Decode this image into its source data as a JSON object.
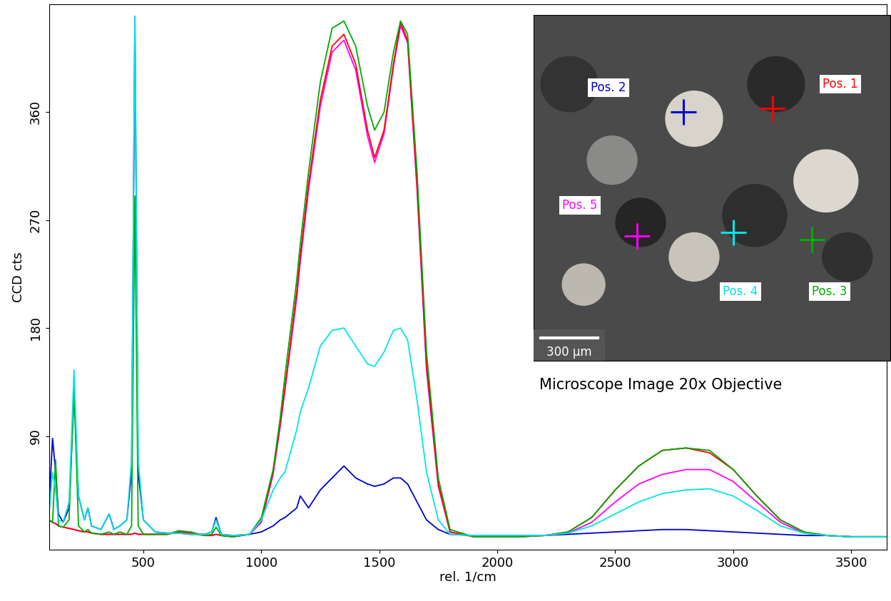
{
  "chart_data": {
    "type": "line",
    "x_label": "rel. 1/cm",
    "y_label": "CCD cts",
    "annotations": [
      "Microscope Image 20x Objective",
      "300 µm"
    ],
    "xlim": [
      100,
      3650
    ],
    "ylim": [
      -5,
      450
    ],
    "xticks": [
      500,
      1000,
      1500,
      2000,
      2500,
      3000,
      3500
    ],
    "yticks": [
      90,
      180,
      270,
      360
    ],
    "grid": false,
    "x": [
      100,
      115,
      128,
      140,
      160,
      185,
      206,
      225,
      250,
      265,
      280,
      320,
      355,
      375,
      400,
      430,
      450,
      464,
      478,
      500,
      550,
      600,
      650,
      700,
      760,
      790,
      808,
      830,
      880,
      950,
      1000,
      1050,
      1080,
      1100,
      1150,
      1165,
      1200,
      1250,
      1300,
      1350,
      1400,
      1450,
      1480,
      1520,
      1560,
      1590,
      1620,
      1660,
      1700,
      1750,
      1800,
      1900,
      2000,
      2100,
      2200,
      2300,
      2400,
      2500,
      2600,
      2700,
      2800,
      2900,
      3000,
      3100,
      3200,
      3300,
      3400,
      3500,
      3650
    ],
    "series": [
      {
        "name": "Pos. 1",
        "color": "#ff0000",
        "values": [
          20,
          18,
          17,
          15,
          14,
          13,
          12,
          11,
          10,
          10,
          9,
          8,
          8,
          8,
          8,
          8,
          8,
          9,
          8,
          8,
          8,
          8,
          10,
          9,
          7,
          7,
          8,
          7,
          6,
          8,
          20,
          60,
          100,
          130,
          210,
          240,
          300,
          370,
          415,
          425,
          400,
          345,
          322,
          345,
          400,
          435,
          420,
          300,
          150,
          50,
          10,
          6,
          6,
          6,
          7,
          10,
          22,
          45,
          65,
          78,
          80,
          76,
          62,
          40,
          20,
          10,
          7,
          6,
          6
        ]
      },
      {
        "name": "Pos. 2",
        "color": "#0000cc",
        "values": [
          30,
          88,
          60,
          25,
          18,
          30,
          125,
          40,
          20,
          30,
          15,
          12,
          25,
          12,
          15,
          20,
          60,
          440,
          60,
          20,
          10,
          9,
          9,
          8,
          8,
          10,
          22,
          8,
          7,
          8,
          10,
          15,
          20,
          22,
          30,
          40,
          30,
          45,
          55,
          65,
          55,
          50,
          48,
          50,
          55,
          55,
          50,
          35,
          20,
          12,
          8,
          7,
          7,
          7,
          7,
          8,
          9,
          10,
          11,
          12,
          12,
          11,
          10,
          9,
          8,
          7,
          7,
          6,
          6
        ]
      },
      {
        "name": "Pos. 3",
        "color": "#00aa00",
        "values": [
          20,
          18,
          70,
          15,
          14,
          20,
          130,
          15,
          10,
          12,
          9,
          8,
          10,
          8,
          10,
          8,
          15,
          290,
          15,
          8,
          8,
          8,
          11,
          10,
          7,
          8,
          14,
          7,
          6,
          8,
          22,
          62,
          105,
          140,
          220,
          250,
          310,
          385,
          430,
          436,
          415,
          365,
          345,
          360,
          410,
          436,
          425,
          310,
          160,
          55,
          12,
          6,
          6,
          6,
          7,
          10,
          22,
          45,
          65,
          78,
          80,
          78,
          62,
          40,
          20,
          10,
          7,
          6,
          6
        ]
      },
      {
        "name": "Pos. 4",
        "color": "#00e5e5",
        "values": [
          25,
          60,
          45,
          20,
          18,
          35,
          145,
          40,
          20,
          30,
          15,
          12,
          25,
          12,
          15,
          20,
          70,
          440,
          70,
          20,
          10,
          9,
          9,
          8,
          8,
          10,
          20,
          8,
          7,
          8,
          20,
          45,
          55,
          60,
          95,
          110,
          130,
          165,
          178,
          180,
          165,
          150,
          148,
          160,
          178,
          180,
          170,
          120,
          60,
          20,
          8,
          7,
          7,
          7,
          7,
          9,
          15,
          25,
          35,
          42,
          45,
          46,
          40,
          28,
          15,
          9,
          7,
          6,
          6
        ]
      },
      {
        "name": "Pos. 5",
        "color": "#ff00ff",
        "values": [
          20,
          18,
          17,
          15,
          14,
          13,
          12,
          11,
          10,
          10,
          9,
          8,
          8,
          8,
          8,
          8,
          8,
          9,
          8,
          8,
          8,
          8,
          10,
          9,
          7,
          7,
          8,
          7,
          6,
          8,
          18,
          58,
          98,
          128,
          205,
          235,
          295,
          365,
          410,
          420,
          395,
          340,
          318,
          342,
          398,
          432,
          418,
          295,
          145,
          48,
          10,
          6,
          6,
          6,
          7,
          9,
          18,
          35,
          50,
          58,
          62,
          62,
          52,
          35,
          18,
          9,
          7,
          6,
          6
        ]
      }
    ]
  }
}
